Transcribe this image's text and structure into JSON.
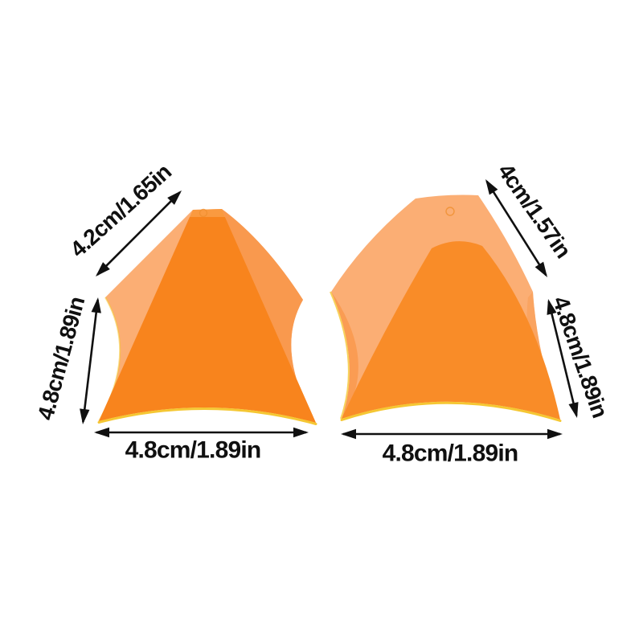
{
  "page": {
    "background": "#ffffff"
  },
  "colors": {
    "face_front": "#f8841d",
    "face_front_right": "#f98c28",
    "face_side_light": "#fbae74",
    "face_side_medium": "#f9994e",
    "face_top": "#fa9a40",
    "edge_rim": "#f5c733",
    "mold_ring": "#ef8e2e",
    "annotation": "#101010"
  },
  "left_item": {
    "top_label": "4.2cm/1.65in",
    "height_label": "4.8cm/1.89in",
    "width_label": "4.8cm/1.89in"
  },
  "right_item": {
    "top_label": "4cm/1.57in",
    "height_label": "4.8cm/1.89in",
    "width_label": "4.8cm/1.89in"
  }
}
